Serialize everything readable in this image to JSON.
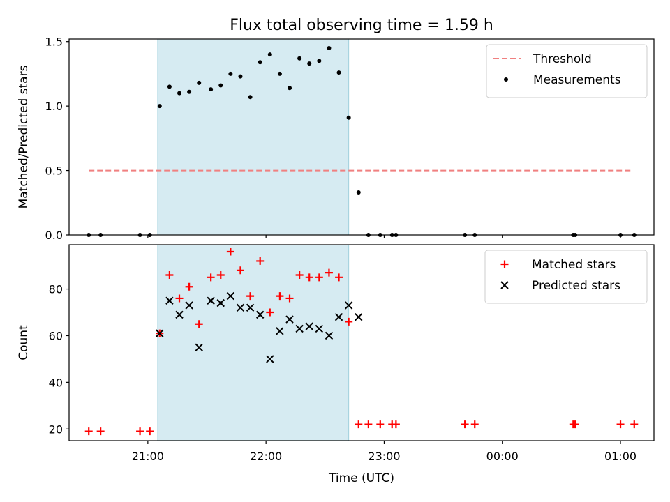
{
  "title": "Flux total observing time = 1.59 h",
  "chart_data": [
    {
      "type": "scatter",
      "panel": "top",
      "ylabel": "Matched/Predicted stars",
      "ylim": [
        0,
        1.52
      ],
      "yticks": [
        "0.0",
        "0.5",
        "1.0",
        "1.5"
      ],
      "ytick_values": [
        0,
        0.5,
        1.0,
        1.5
      ],
      "highlight_span": [
        "21:05",
        "22:42"
      ],
      "legend_position": "top-right",
      "threshold": {
        "name": "Threshold",
        "value": 0.5,
        "x_start": "20:30",
        "x_end": "01:06",
        "color": "#f08080",
        "style": "dashed"
      },
      "series": [
        {
          "name": "Measurements",
          "color": "#000000",
          "marker": "dot",
          "x": [
            "20:30",
            "20:36",
            "20:56",
            "21:01",
            "21:06",
            "21:11",
            "21:16",
            "21:21",
            "21:26",
            "21:32",
            "21:37",
            "21:42",
            "21:47",
            "21:52",
            "21:57",
            "22:02",
            "22:07",
            "22:12",
            "22:17",
            "22:22",
            "22:27",
            "22:32",
            "22:37",
            "22:42",
            "22:47",
            "22:52",
            "22:58",
            "23:04",
            "23:06",
            "23:41",
            "23:46",
            "00:36",
            "00:37",
            "01:00",
            "01:07"
          ],
          "y": [
            0,
            0,
            0,
            0,
            1.0,
            1.15,
            1.1,
            1.11,
            1.18,
            1.13,
            1.16,
            1.25,
            1.23,
            1.07,
            1.34,
            1.4,
            1.25,
            1.14,
            1.37,
            1.33,
            1.35,
            1.45,
            1.26,
            0.91,
            0.33,
            0,
            0,
            0,
            0,
            0,
            0,
            0,
            0,
            0,
            0
          ]
        }
      ]
    },
    {
      "type": "scatter",
      "panel": "bottom",
      "ylabel": "Count",
      "xlabel": "Time (UTC)",
      "ylim": [
        15,
        99
      ],
      "yticks": [
        "20",
        "40",
        "60",
        "80"
      ],
      "ytick_values": [
        20,
        40,
        60,
        80
      ],
      "x_range": [
        "20:20",
        "01:17"
      ],
      "xticks": [
        "21:00",
        "22:00",
        "23:00",
        "00:00",
        "01:00"
      ],
      "highlight_span": [
        "21:05",
        "22:42"
      ],
      "legend_position": "top-right",
      "series": [
        {
          "name": "Matched stars",
          "color": "#ff0000",
          "marker": "plus",
          "x": [
            "20:30",
            "20:36",
            "20:56",
            "21:01",
            "21:06",
            "21:11",
            "21:16",
            "21:21",
            "21:26",
            "21:32",
            "21:37",
            "21:42",
            "21:47",
            "21:52",
            "21:57",
            "22:02",
            "22:07",
            "22:12",
            "22:17",
            "22:22",
            "22:27",
            "22:32",
            "22:37",
            "22:42",
            "22:47",
            "22:52",
            "22:58",
            "23:04",
            "23:06",
            "23:41",
            "23:46",
            "00:36",
            "00:37",
            "01:00",
            "01:07"
          ],
          "y": [
            19,
            19,
            19,
            19,
            61,
            86,
            76,
            81,
            65,
            85,
            86,
            96,
            88,
            77,
            92,
            70,
            77,
            76,
            86,
            85,
            85,
            87,
            85,
            66,
            22,
            22,
            22,
            22,
            22,
            22,
            22,
            22,
            22,
            22,
            22
          ]
        },
        {
          "name": "Predicted stars",
          "color": "#000000",
          "marker": "x",
          "x": [
            "21:06",
            "21:11",
            "21:16",
            "21:21",
            "21:26",
            "21:32",
            "21:37",
            "21:42",
            "21:47",
            "21:52",
            "21:57",
            "22:02",
            "22:07",
            "22:12",
            "22:17",
            "22:22",
            "22:27",
            "22:32",
            "22:37",
            "22:42",
            "22:47"
          ],
          "y": [
            61,
            75,
            69,
            73,
            55,
            75,
            74,
            77,
            72,
            72,
            69,
            50,
            62,
            67,
            63,
            64,
            63,
            60,
            68,
            73,
            68
          ]
        }
      ]
    }
  ]
}
